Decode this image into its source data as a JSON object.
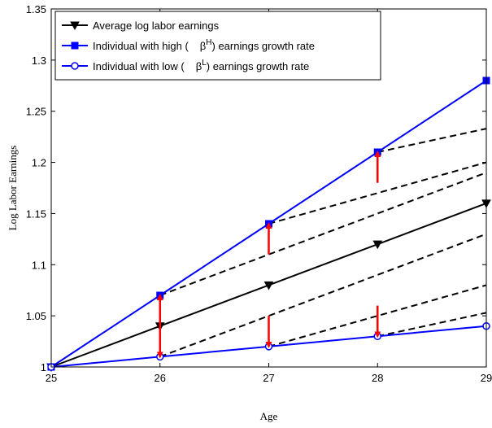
{
  "chart_data": {
    "type": "line",
    "xlabel": "Age",
    "ylabel": "Log Labor Earnings",
    "xlim": [
      25,
      29
    ],
    "ylim": [
      1.0,
      1.35
    ],
    "x_ticks": [
      25,
      26,
      27,
      28,
      29
    ],
    "y_ticks": [
      1.0,
      1.05,
      1.1,
      1.15,
      1.2,
      1.25,
      1.3,
      1.35
    ],
    "x_tick_labels": [
      "25",
      "26",
      "27",
      "28",
      "29"
    ],
    "y_tick_labels": [
      "1",
      "1.05",
      "1.1",
      "1.15",
      "1.2",
      "1.25",
      "1.3",
      "1.35"
    ],
    "x": [
      25,
      26,
      27,
      28,
      29
    ],
    "series": [
      {
        "name": "Average log labor earnings",
        "values": [
          1.0,
          1.04,
          1.08,
          1.12,
          1.16
        ],
        "color": "#000000",
        "marker": "triangle-down"
      },
      {
        "name": "Individual with high (   βH) earnings growth rate",
        "legend_text_before": "Individual with high (",
        "legend_symbol": "β",
        "legend_superscript": "H",
        "legend_text_after": ") earnings growth rate",
        "values": [
          1.0,
          1.07,
          1.14,
          1.21,
          1.28
        ],
        "color": "#0000ff",
        "marker": "square"
      },
      {
        "name": "Individual with low (   βL) earnings growth rate",
        "legend_text_before": "Individual with low (",
        "legend_symbol": "β",
        "legend_superscript": "L",
        "legend_text_after": ") earnings growth rate",
        "values": [
          1.0,
          1.01,
          1.02,
          1.03,
          1.04
        ],
        "color": "#0000ff",
        "marker": "circle"
      }
    ],
    "dashed_lines": [
      {
        "x": [
          26,
          29
        ],
        "y": [
          1.07,
          1.19
        ]
      },
      {
        "x": [
          27,
          29
        ],
        "y": [
          1.14,
          1.2
        ]
      },
      {
        "x": [
          28,
          29
        ],
        "y": [
          1.21,
          1.233
        ]
      },
      {
        "x": [
          26,
          29
        ],
        "y": [
          1.01,
          1.13
        ]
      },
      {
        "x": [
          27,
          29
        ],
        "y": [
          1.02,
          1.08
        ]
      },
      {
        "x": [
          28,
          29
        ],
        "y": [
          1.03,
          1.053
        ]
      }
    ],
    "arrows": [
      {
        "x": 26,
        "from": 1.04,
        "to": 1.07
      },
      {
        "x": 27,
        "from": 1.11,
        "to": 1.14
      },
      {
        "x": 28,
        "from": 1.18,
        "to": 1.21
      },
      {
        "x": 26,
        "from": 1.04,
        "to": 1.01
      },
      {
        "x": 27,
        "from": 1.05,
        "to": 1.02
      },
      {
        "x": 28,
        "from": 1.06,
        "to": 1.03
      }
    ],
    "arrow_color": "#ff0000",
    "legend_position": "top-left",
    "grid": false
  }
}
